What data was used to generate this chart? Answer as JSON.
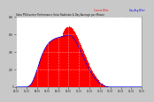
{
  "title": "Solar PV/Inverter Performance Solar Radiation & Day Average per Minute",
  "bg_color": "#c8c8c8",
  "plot_bg_color": "#ffffff",
  "grid_color": "#aaaaaa",
  "fill_color": "#ff0000",
  "line_color": "#ff0000",
  "avg_line_color": "#0000ff",
  "ylim": [
    0,
    800
  ],
  "xlim": [
    0,
    144
  ],
  "x_tick_positions": [
    0,
    12,
    24,
    36,
    48,
    60,
    72,
    84,
    96,
    108,
    120,
    132,
    144
  ],
  "x_labels": [
    "04:00",
    "05:00",
    "06:00",
    "07:00",
    "08:00",
    "09:00",
    "10:00",
    "11:00",
    "12:00",
    "13:00",
    "14:00",
    "15:00",
    "16:00"
  ],
  "y_ticks": [
    0,
    200,
    400,
    600,
    800
  ],
  "data": [
    0,
    0,
    0,
    0,
    0,
    0,
    0,
    0,
    0,
    0,
    0,
    0,
    2,
    5,
    10,
    18,
    28,
    42,
    60,
    82,
    106,
    132,
    160,
    190,
    222,
    254,
    286,
    316,
    344,
    370,
    394,
    416,
    436,
    454,
    470,
    484,
    496,
    508,
    518,
    527,
    534,
    541,
    547,
    552,
    557,
    561,
    564,
    567,
    570,
    572,
    574,
    576,
    578,
    580,
    620,
    640,
    660,
    672,
    680,
    685,
    688,
    690,
    686,
    680,
    670,
    658,
    644,
    628,
    610,
    590,
    570,
    548,
    526,
    504,
    480,
    456,
    432,
    408,
    384,
    360,
    336,
    312,
    288,
    266,
    244,
    222,
    202,
    182,
    164,
    146,
    130,
    114,
    100,
    86,
    74,
    62,
    52,
    42,
    34,
    26,
    20,
    15,
    11,
    8,
    5,
    3,
    2,
    1,
    0,
    0,
    0,
    0,
    0,
    0,
    0,
    0,
    0,
    0,
    0,
    0,
    0,
    0,
    0,
    0,
    0,
    0,
    0,
    0,
    0,
    0,
    0,
    0,
    0,
    0,
    0,
    0,
    0,
    0,
    0,
    0,
    0,
    0,
    0,
    0
  ],
  "avg_data": [
    0,
    0,
    0,
    0,
    0,
    0,
    0,
    0,
    0,
    0,
    0,
    0,
    1,
    4,
    8,
    15,
    24,
    37,
    54,
    74,
    97,
    122,
    150,
    180,
    211,
    243,
    275,
    306,
    334,
    361,
    386,
    408,
    429,
    447,
    464,
    479,
    492,
    503,
    513,
    522,
    530,
    537,
    543,
    548,
    553,
    558,
    561,
    564,
    567,
    570,
    572,
    574,
    576,
    578,
    580,
    582,
    584,
    586,
    588,
    590,
    592,
    590,
    586,
    580,
    572,
    562,
    550,
    536,
    520,
    502,
    482,
    462,
    440,
    418,
    396,
    374,
    352,
    330,
    308,
    286,
    265,
    244,
    224,
    204,
    186,
    168,
    151,
    136,
    121,
    108,
    95,
    83,
    72,
    62,
    53,
    44,
    37,
    30,
    24,
    18,
    13,
    9,
    6,
    4,
    2,
    1,
    0,
    0,
    0,
    0,
    0,
    0,
    0,
    0,
    0,
    0,
    0,
    0,
    0,
    0,
    0,
    0,
    0,
    0,
    0,
    0,
    0,
    0,
    0,
    0,
    0,
    0,
    0,
    0,
    0,
    0,
    0,
    0,
    0,
    0,
    0,
    0,
    0,
    0
  ]
}
